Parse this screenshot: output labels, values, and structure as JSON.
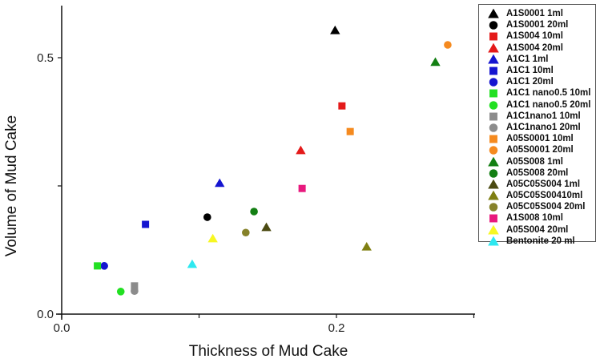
{
  "chart_data": {
    "type": "scatter",
    "title": "",
    "xlabel": "Thickness of Mud Cake",
    "ylabel": "Volume of Mud Cake",
    "xlim": [
      0.0,
      0.3
    ],
    "ylim": [
      0.0,
      0.6
    ],
    "xticks": [
      {
        "value": 0.0,
        "label": "0.0"
      },
      {
        "value": 0.1,
        "label": ""
      },
      {
        "value": 0.2,
        "label": "0.2"
      },
      {
        "value": 0.3,
        "label": ""
      }
    ],
    "yticks": [
      {
        "value": 0.0,
        "label": "0.0"
      },
      {
        "value": 0.25,
        "label": ""
      },
      {
        "value": 0.5,
        "label": "0.5"
      }
    ],
    "grid": false,
    "legend_position": "right",
    "series": [
      {
        "name": "A1S0001 1ml",
        "marker": "triangle",
        "color": "#000000",
        "x": 0.199,
        "y": 0.553
      },
      {
        "name": "A1S0001 20ml",
        "marker": "circle",
        "color": "#000000",
        "x": 0.106,
        "y": 0.189
      },
      {
        "name": "A1S004 10ml",
        "marker": "square",
        "color": "#e41a1a",
        "x": 0.204,
        "y": 0.406
      },
      {
        "name": "A1S004 20ml",
        "marker": "triangle",
        "color": "#e41a1a",
        "x": 0.174,
        "y": 0.319
      },
      {
        "name": "A1C1 1ml",
        "marker": "triangle",
        "color": "#1515d0",
        "x": 0.115,
        "y": 0.255
      },
      {
        "name": "A1C1 10ml",
        "marker": "square",
        "color": "#1515d0",
        "x": 0.061,
        "y": 0.175
      },
      {
        "name": "A1C1 20ml",
        "marker": "circle",
        "color": "#1515d0",
        "x": 0.031,
        "y": 0.094
      },
      {
        "name": "A1C1 nano0.5 10ml",
        "marker": "square",
        "color": "#22e022",
        "x": 0.026,
        "y": 0.094
      },
      {
        "name": "A1C1 nano0.5 20ml",
        "marker": "circle",
        "color": "#22e022",
        "x": 0.043,
        "y": 0.044
      },
      {
        "name": "A1C1nano1 10ml",
        "marker": "square",
        "color": "#8c8c8c",
        "x": 0.053,
        "y": 0.055
      },
      {
        "name": "A1C1nano1 20ml",
        "marker": "circle",
        "color": "#8c8c8c",
        "x": 0.053,
        "y": 0.045
      },
      {
        "name": "A05S0001 10ml",
        "marker": "square",
        "color": "#f58a1f",
        "x": 0.21,
        "y": 0.356
      },
      {
        "name": "A05S0001 20ml",
        "marker": "circle",
        "color": "#f58a1f",
        "x": 0.281,
        "y": 0.525
      },
      {
        "name": "A05S008 1ml",
        "marker": "triangle",
        "color": "#137f13",
        "x": 0.272,
        "y": 0.491
      },
      {
        "name": "A05S008 20ml",
        "marker": "circle",
        "color": "#137f13",
        "x": 0.14,
        "y": 0.2
      },
      {
        "name": "A05C05S004 1ml",
        "marker": "triangle",
        "color": "#4b4a12",
        "x": 0.149,
        "y": 0.169
      },
      {
        "name": "A05C05S00410ml",
        "marker": "triangle",
        "color": "#7f7f12",
        "x": 0.222,
        "y": 0.131
      },
      {
        "name": "A05C05S004 20ml",
        "marker": "circle",
        "color": "#86822a",
        "x": 0.134,
        "y": 0.159
      },
      {
        "name": "A1S008 10ml",
        "marker": "square",
        "color": "#e8197e",
        "x": 0.175,
        "y": 0.245
      },
      {
        "name": "A05S004 20ml",
        "marker": "triangle",
        "color": "#f7f722",
        "x": 0.11,
        "y": 0.147
      },
      {
        "name": "Bentonite 20 ml",
        "marker": "triangle",
        "color": "#2de8f0",
        "x": 0.095,
        "y": 0.097
      }
    ]
  }
}
